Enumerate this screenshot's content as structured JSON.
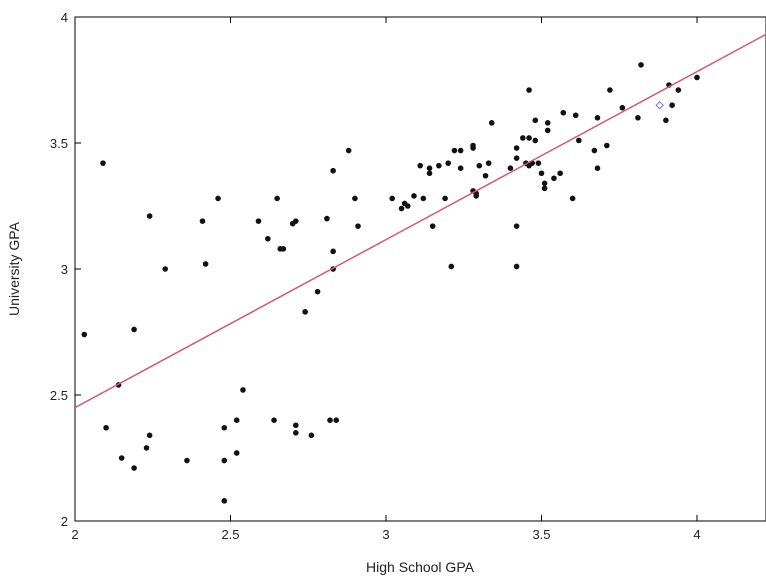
{
  "chart_data": {
    "type": "scatter",
    "xlabel": "High School GPA",
    "ylabel": "University GPA",
    "xlim": [
      2.0,
      4.25
    ],
    "ylim": [
      2.0,
      4.0
    ],
    "xticks": [
      "2",
      "2.5",
      "3",
      "3.5",
      "4"
    ],
    "yticks": [
      "2",
      "2.5",
      "3",
      "3.5",
      "4"
    ],
    "grid": false,
    "colors": {
      "points": "#111111",
      "regression_line": "#d05a78",
      "highlight": "#6a7fd0"
    },
    "points": [
      [
        2.03,
        2.74
      ],
      [
        2.09,
        3.42
      ],
      [
        2.1,
        2.37
      ],
      [
        2.14,
        2.54
      ],
      [
        2.15,
        2.25
      ],
      [
        2.19,
        2.76
      ],
      [
        2.19,
        2.21
      ],
      [
        2.23,
        2.29
      ],
      [
        2.24,
        3.21
      ],
      [
        2.24,
        2.34
      ],
      [
        2.29,
        3.0
      ],
      [
        2.36,
        2.24
      ],
      [
        2.41,
        3.19
      ],
      [
        2.42,
        3.02
      ],
      [
        2.46,
        3.28
      ],
      [
        2.48,
        2.37
      ],
      [
        2.48,
        2.24
      ],
      [
        2.48,
        2.08
      ],
      [
        2.52,
        2.27
      ],
      [
        2.52,
        2.4
      ],
      [
        2.54,
        2.52
      ],
      [
        2.59,
        3.19
      ],
      [
        2.62,
        3.12
      ],
      [
        2.64,
        2.4
      ],
      [
        2.65,
        3.28
      ],
      [
        2.66,
        3.08
      ],
      [
        2.67,
        3.08
      ],
      [
        2.7,
        3.18
      ],
      [
        2.71,
        3.19
      ],
      [
        2.71,
        2.38
      ],
      [
        2.71,
        2.35
      ],
      [
        2.74,
        2.83
      ],
      [
        2.76,
        2.34
      ],
      [
        2.78,
        2.91
      ],
      [
        2.81,
        3.2
      ],
      [
        2.82,
        2.4
      ],
      [
        2.83,
        3.39
      ],
      [
        2.83,
        3.07
      ],
      [
        2.83,
        3.0
      ],
      [
        2.84,
        2.4
      ],
      [
        2.88,
        3.47
      ],
      [
        2.9,
        3.28
      ],
      [
        2.91,
        3.17
      ],
      [
        3.02,
        3.28
      ],
      [
        3.05,
        3.24
      ],
      [
        3.06,
        3.26
      ],
      [
        3.07,
        3.25
      ],
      [
        3.09,
        3.29
      ],
      [
        3.11,
        3.41
      ],
      [
        3.12,
        3.28
      ],
      [
        3.14,
        3.38
      ],
      [
        3.14,
        3.4
      ],
      [
        3.15,
        3.17
      ],
      [
        3.17,
        3.41
      ],
      [
        3.19,
        3.28
      ],
      [
        3.2,
        3.42
      ],
      [
        3.21,
        3.01
      ],
      [
        3.22,
        3.47
      ],
      [
        3.24,
        3.47
      ],
      [
        3.24,
        3.4
      ],
      [
        3.28,
        3.48
      ],
      [
        3.28,
        3.49
      ],
      [
        3.28,
        3.31
      ],
      [
        3.29,
        3.29
      ],
      [
        3.29,
        3.3
      ],
      [
        3.3,
        3.41
      ],
      [
        3.32,
        3.37
      ],
      [
        3.33,
        3.42
      ],
      [
        3.34,
        3.58
      ],
      [
        3.4,
        3.4
      ],
      [
        3.42,
        3.17
      ],
      [
        3.42,
        3.01
      ],
      [
        3.42,
        3.44
      ],
      [
        3.42,
        3.48
      ],
      [
        3.44,
        3.52
      ],
      [
        3.45,
        3.42
      ],
      [
        3.46,
        3.41
      ],
      [
        3.46,
        3.71
      ],
      [
        3.46,
        3.52
      ],
      [
        3.47,
        3.42
      ],
      [
        3.48,
        3.59
      ],
      [
        3.48,
        3.51
      ],
      [
        3.49,
        3.42
      ],
      [
        3.5,
        3.38
      ],
      [
        3.51,
        3.34
      ],
      [
        3.51,
        3.32
      ],
      [
        3.52,
        3.55
      ],
      [
        3.52,
        3.58
      ],
      [
        3.54,
        3.36
      ],
      [
        3.56,
        3.38
      ],
      [
        3.57,
        3.62
      ],
      [
        3.6,
        3.28
      ],
      [
        3.61,
        3.61
      ],
      [
        3.62,
        3.51
      ],
      [
        3.67,
        3.47
      ],
      [
        3.68,
        3.6
      ],
      [
        3.68,
        3.4
      ],
      [
        3.71,
        3.49
      ],
      [
        3.72,
        3.71
      ],
      [
        3.76,
        3.64
      ],
      [
        3.81,
        3.6
      ],
      [
        3.82,
        3.81
      ],
      [
        3.9,
        3.59
      ],
      [
        3.91,
        3.73
      ],
      [
        3.92,
        3.65
      ],
      [
        3.94,
        3.71
      ],
      [
        4.0,
        3.76
      ]
    ],
    "highlight_points": [
      [
        3.88,
        3.65
      ]
    ],
    "regression_line": {
      "x": [
        2.0,
        4.25
      ],
      "y": [
        2.45,
        3.95
      ]
    }
  }
}
